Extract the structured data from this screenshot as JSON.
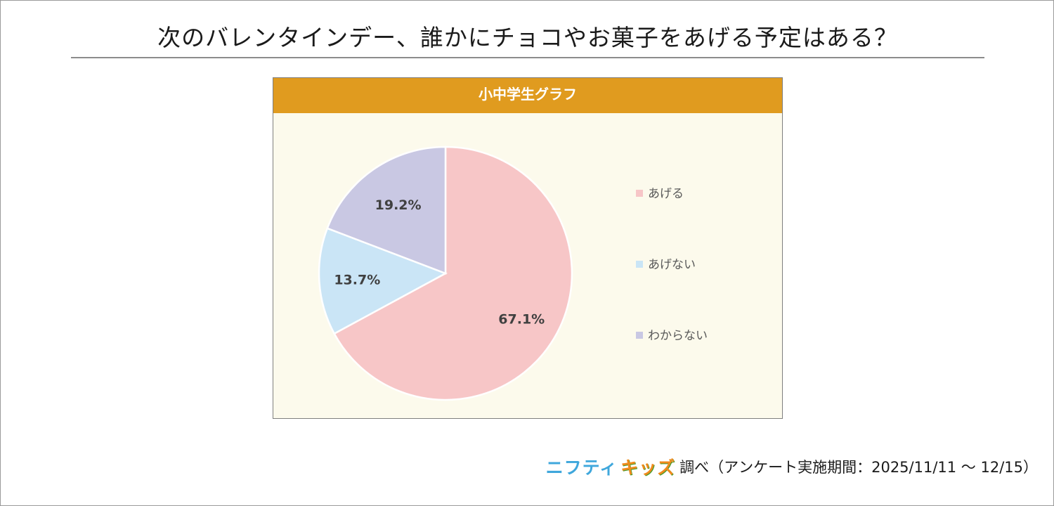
{
  "title": "次のバレンタインデー、誰かにチョコやお菓子をあげる予定はある？",
  "chart_data": {
    "type": "pie",
    "title": "小中学生グラフ",
    "slices": [
      {
        "label": "あげる",
        "value": 67.1,
        "display": "67.1%",
        "color": "#f7c6c7"
      },
      {
        "label": "あげない",
        "value": 13.7,
        "display": "13.7%",
        "color": "#cae5f6"
      },
      {
        "label": "わからない",
        "value": 19.2,
        "display": "19.2%",
        "color": "#c9c8e3"
      }
    ],
    "legend_position": "right",
    "start_angle": "12 o'clock, clockwise"
  },
  "colors": {
    "header_bg": "#e09b1f",
    "panel_bg": "#fcfaec",
    "label_text": "#404040",
    "legend_text": "#595959"
  },
  "credit": {
    "brand_nifty": "ニフティ",
    "brand_kids": "キッズ",
    "text": "調べ（アンケート実施期間：2025/11/11 ～ 12/15）"
  }
}
